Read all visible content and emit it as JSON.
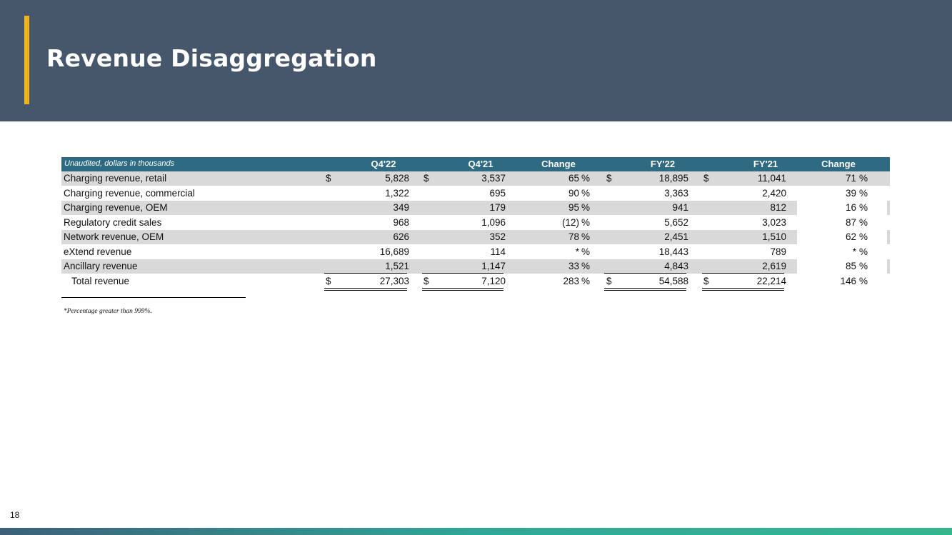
{
  "header": {
    "title": "Revenue Disaggregation"
  },
  "table": {
    "subtitle": "Unaudited, dollars in thousands",
    "columns": [
      "Q4'22",
      "Q4'21",
      "Change",
      "FY'22",
      "FY'21",
      "Change"
    ],
    "rows": [
      {
        "label": "Charging revenue, retail",
        "q4_22_dollar": "$",
        "q4_22": "5,828",
        "q4_21_dollar": "$",
        "q4_21": "3,537",
        "chg_q": "65",
        "chg_q_pct": "%",
        "fy22_dollar": "$",
        "fy22": "18,895",
        "fy21_dollar": "$",
        "fy21": "11,041",
        "chg_fy": "71",
        "chg_fy_pct": "%"
      },
      {
        "label": "Charging revenue, commercial",
        "q4_22": "1,322",
        "q4_21": "695",
        "chg_q": "90",
        "chg_q_pct": "%",
        "fy22": "3,363",
        "fy21": "2,420",
        "chg_fy": "39",
        "chg_fy_pct": "%"
      },
      {
        "label": "Charging revenue, OEM",
        "q4_22": "349",
        "q4_21": "179",
        "chg_q": "95",
        "chg_q_pct": "%",
        "fy22": "941",
        "fy21": "812",
        "chg_fy": "16",
        "chg_fy_pct": "%"
      },
      {
        "label": "Regulatory credit sales",
        "q4_22": "968",
        "q4_21": "1,096",
        "chg_q": "(12)",
        "chg_q_pct": "%",
        "fy22": "5,652",
        "fy21": "3,023",
        "chg_fy": "87",
        "chg_fy_pct": "%"
      },
      {
        "label": "Network revenue, OEM",
        "q4_22": "626",
        "q4_21": "352",
        "chg_q": "78",
        "chg_q_pct": "%",
        "fy22": "2,451",
        "fy21": "1,510",
        "chg_fy": "62",
        "chg_fy_pct": "%"
      },
      {
        "label": "eXtend revenue",
        "q4_22": "16,689",
        "q4_21": "114",
        "chg_q": "*",
        "chg_q_pct": "%",
        "fy22": "18,443",
        "fy21": "789",
        "chg_fy": "*",
        "chg_fy_pct": "%"
      },
      {
        "label": "Ancillary revenue",
        "q4_22": "1,521",
        "q4_21": "1,147",
        "chg_q": "33",
        "chg_q_pct": "%",
        "fy22": "4,843",
        "fy21": "2,619",
        "chg_fy": "85",
        "chg_fy_pct": "%"
      },
      {
        "label": "Total revenue",
        "q4_22_dollar": "$",
        "q4_22": "27,303",
        "q4_21_dollar": "$",
        "q4_21": "7,120",
        "chg_q": "283",
        "chg_q_pct": "%",
        "fy22_dollar": "$",
        "fy22": "54,588",
        "fy21_dollar": "$",
        "fy21": "22,214",
        "chg_fy": "146",
        "chg_fy_pct": "%"
      }
    ]
  },
  "footnote": "*Percentage greater than 999%.",
  "page_number": "18"
}
